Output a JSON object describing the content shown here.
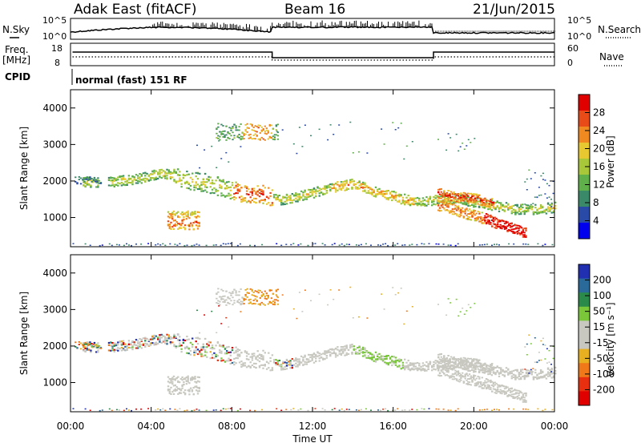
{
  "header": {
    "radar": "Adak East (fitACF)",
    "beam": "Beam 16",
    "date": "21/Jun/2015"
  },
  "top_panels": {
    "nsky_label": "N.Sky",
    "nsky_ticks": [
      "10^5",
      "10^0"
    ],
    "nsearch_label": "N.Search",
    "nsearch_ticks": [
      "10^5",
      "10^0"
    ],
    "freq_label": "Freq.",
    "freq_unit": "[MHz]",
    "freq_ticks": [
      "18",
      "8"
    ],
    "nave_label": "Nave",
    "nave_ticks": [
      "60",
      "0"
    ],
    "cpid_label": "CPID",
    "cpid_text": "normal (fast) 151 RF"
  },
  "colors": {
    "power_scale": [
      "#0000ee",
      "#2a4aa8",
      "#3a8a6a",
      "#5fb04a",
      "#a8c83a",
      "#e8c830",
      "#f08a20",
      "#e84a18",
      "#e00000"
    ],
    "velocity_scale": [
      "#2030b0",
      "#2a6a9a",
      "#2a8a4a",
      "#7ac83a",
      "#c8c8c0",
      "#c8c8c0",
      "#e8b020",
      "#f07818",
      "#e83010",
      "#e00000"
    ]
  },
  "chart_data": [
    {
      "type": "heatmap",
      "name": "power",
      "ylabel": "Slant Range [km]",
      "yticks": [
        1000,
        2000,
        3000,
        4000
      ],
      "ylim": [
        200,
        4500
      ],
      "xticks": [
        "00:00",
        "04:00",
        "08:00",
        "12:00",
        "16:00",
        "20:00",
        "00:00"
      ],
      "colorbar": {
        "label": "Power [dB]",
        "ticks": [
          4,
          8,
          12,
          16,
          20,
          24,
          28
        ]
      },
      "features": [
        {
          "desc": "main band",
          "t_start": 5.5,
          "t_end": 24,
          "range_points": [
            [
              5.5,
              1900
            ],
            [
              7,
              1800
            ],
            [
              8.5,
              1600
            ],
            [
              10,
              1450
            ],
            [
              12,
              1700
            ],
            [
              14,
              1900
            ],
            [
              16,
              1600
            ],
            [
              18,
              1400
            ]
          ]
        },
        {
          "desc": "early echoes",
          "t_start": 1.5,
          "t_end": 4.5,
          "range_points": [
            [
              1.5,
              2000
            ],
            [
              3.5,
              2100
            ],
            [
              4.5,
              2200
            ]
          ]
        },
        {
          "desc": "near-range patch",
          "t_start": 4.8,
          "t_end": 6.5,
          "range_points": [
            [
              5,
              700
            ],
            [
              6,
              900
            ]
          ]
        },
        {
          "desc": "far-range patch",
          "t_start": 8.5,
          "t_end": 10.5,
          "range_points": [
            [
              8.5,
              3300
            ],
            [
              10,
              3500
            ]
          ]
        },
        {
          "desc": "late strong band",
          "t_start": 18.5,
          "t_end": 22.5,
          "range_points": [
            [
              19,
              1500
            ],
            [
              21,
              1000
            ],
            [
              22,
              600
            ]
          ]
        }
      ]
    },
    {
      "type": "heatmap",
      "name": "velocity",
      "ylabel": "Slant Range [km]",
      "yticks": [
        1000,
        2000,
        3000,
        4000
      ],
      "ylim": [
        200,
        4500
      ],
      "xticks": [
        "00:00",
        "04:00",
        "08:00",
        "12:00",
        "16:00",
        "20:00",
        "00:00"
      ],
      "xlabel": "Time UT",
      "colorbar": {
        "label": "Velocity [m s⁻¹]",
        "ticks": [
          200,
          100,
          50,
          15,
          -15,
          -50,
          -100,
          -200
        ]
      }
    }
  ]
}
